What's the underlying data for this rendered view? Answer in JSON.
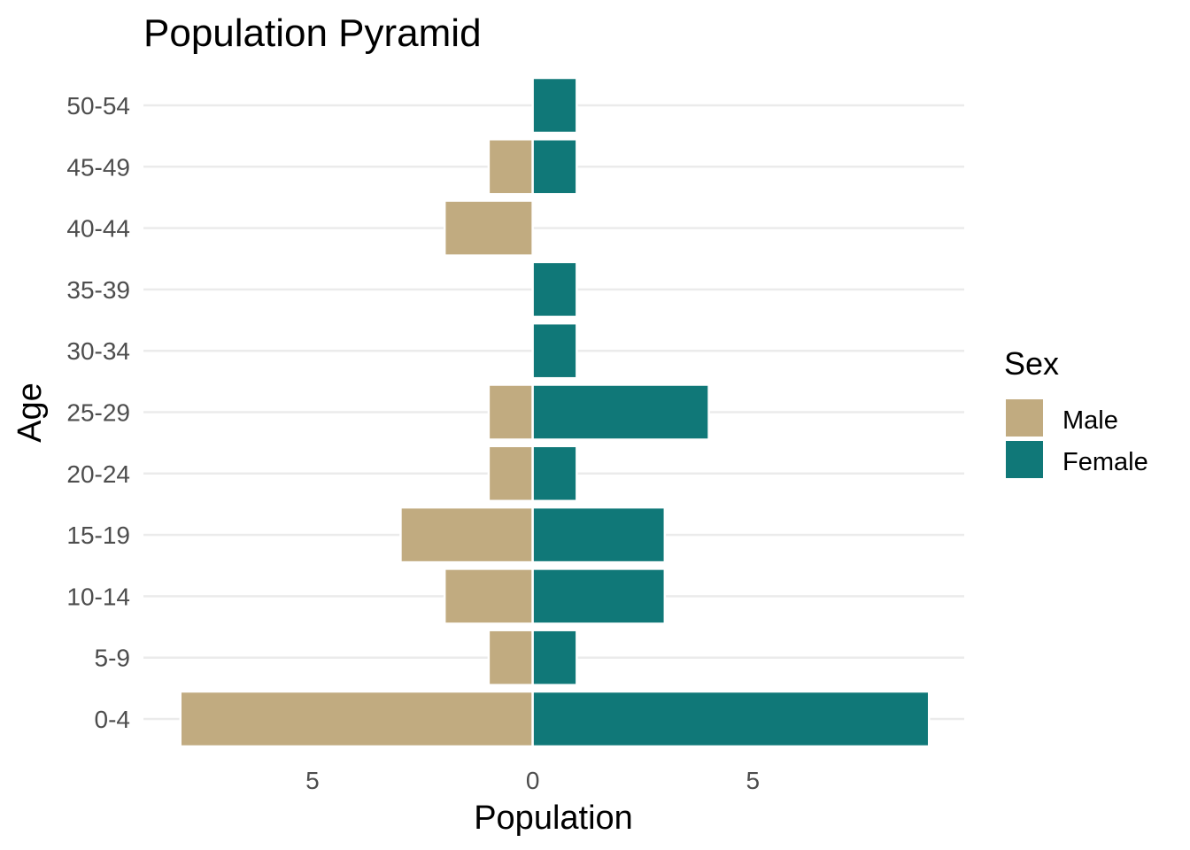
{
  "chart_data": {
    "type": "bar",
    "orientation": "horizontal",
    "title": "Population Pyramid",
    "xlabel": "Population",
    "ylabel": "Age",
    "categories": [
      "0-4",
      "5-9",
      "10-14",
      "15-19",
      "20-24",
      "25-29",
      "30-34",
      "35-39",
      "40-44",
      "45-49",
      "50-54"
    ],
    "series": [
      {
        "name": "Male",
        "values": [
          -8,
          -1,
          -2,
          -3,
          -1,
          -1,
          0,
          0,
          -2,
          -1,
          0
        ]
      },
      {
        "name": "Female",
        "values": [
          9,
          1,
          3,
          3,
          1,
          4,
          1,
          1,
          0,
          1,
          1
        ]
      }
    ],
    "x_ticks": [
      {
        "value": -5,
        "label": "5"
      },
      {
        "value": 0,
        "label": "0"
      },
      {
        "value": 5,
        "label": "5"
      }
    ],
    "xlim": [
      -8.84,
      9.8
    ],
    "grid": "horizontal major only",
    "legend": {
      "title": "Sex",
      "position": "right"
    },
    "colors": {
      "Male": "#c1ab80",
      "Female": "#107878"
    }
  }
}
